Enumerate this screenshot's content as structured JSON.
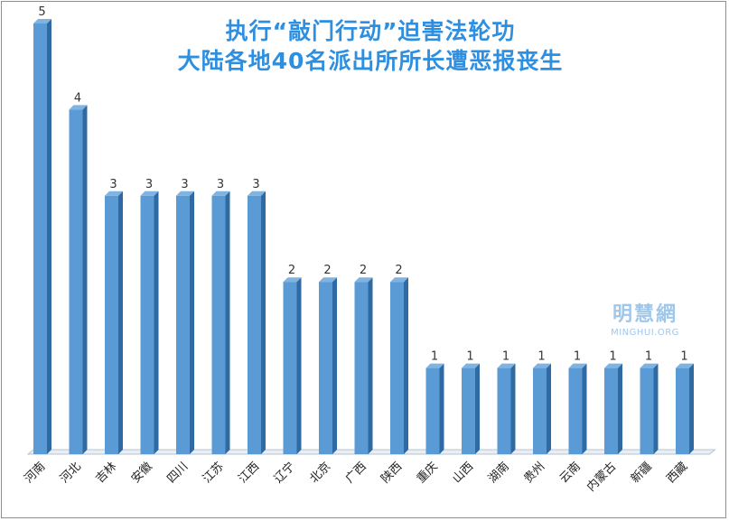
{
  "chart_data": {
    "type": "bar",
    "title_lines": [
      "执行“敲门行动”迫害法轮功",
      "大陆各地40名派出所所长遭恶报丧生"
    ],
    "categories": [
      "河南",
      "河北",
      "吉林",
      "安徽",
      "四川",
      "江苏",
      "江西",
      "辽宁",
      "北京",
      "广西",
      "陕西",
      "重庆",
      "山西",
      "湖南",
      "贵州",
      "云南",
      "内蒙古",
      "新疆",
      "西藏"
    ],
    "values": [
      5,
      4,
      3,
      3,
      3,
      3,
      3,
      2,
      2,
      2,
      2,
      1,
      1,
      1,
      1,
      1,
      1,
      1,
      1
    ],
    "ylim": [
      0,
      5
    ],
    "bar_color": "#5b9bd5",
    "bar_side_color": "#2f6aa3",
    "bar_top_color": "#7fb3e2",
    "grid": false,
    "legend": "none"
  },
  "watermark": {
    "cn": "明慧網",
    "en": "MINGHUI.ORG"
  }
}
